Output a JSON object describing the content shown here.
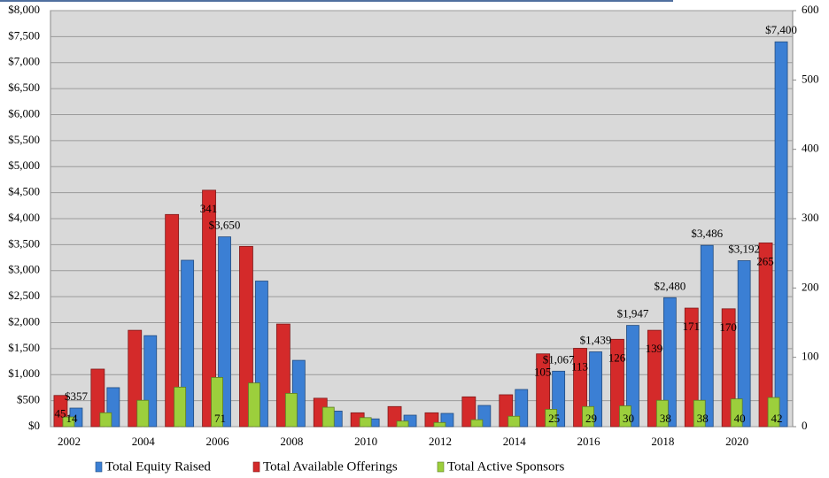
{
  "chart_data": {
    "type": "bar",
    "categories": [
      "2002",
      null,
      "2004",
      null,
      "2006",
      null,
      "2008",
      null,
      "2010",
      null,
      "2012",
      null,
      "2014",
      null,
      "2016",
      null,
      "2018",
      null,
      "2020",
      null
    ],
    "series": [
      {
        "name": "Total Equity Raised",
        "color": "#3b7fd4",
        "axis": "y",
        "values": [
          357,
          750,
          1750,
          3200,
          3650,
          2800,
          1275,
          300,
          150,
          221,
          255,
          408,
          715,
          1067,
          1439,
          1947,
          2480,
          3486,
          3192,
          7400
        ],
        "value_labels": [
          "$357",
          null,
          null,
          null,
          "$3,650",
          null,
          null,
          null,
          null,
          null,
          null,
          null,
          null,
          "$1,067",
          "$1,439",
          "$1,947",
          "$2,480",
          "$3,486",
          "$3,192",
          "$7,400"
        ]
      },
      {
        "name": "Total Available Offerings",
        "color": "#d42a2a",
        "axis": "y2",
        "values": [
          45,
          83,
          139,
          306,
          341,
          260,
          148,
          41,
          20,
          29,
          20,
          43,
          46,
          105,
          113,
          126,
          139,
          171,
          170,
          265
        ],
        "value_labels": [
          "45",
          null,
          null,
          null,
          "341",
          null,
          null,
          null,
          null,
          null,
          null,
          null,
          null,
          "105",
          "113",
          "126",
          "139",
          "171",
          "170",
          "265"
        ]
      },
      {
        "name": "Total Active Sponsors",
        "color": "#9ccf3c",
        "axis": "y2",
        "values": [
          14,
          20,
          38,
          57,
          71,
          63,
          48,
          28,
          13,
          8,
          6,
          10,
          15,
          25,
          29,
          30,
          38,
          38,
          40,
          42
        ],
        "value_labels": [
          "14",
          null,
          null,
          null,
          "71",
          null,
          null,
          null,
          null,
          null,
          null,
          null,
          null,
          "25",
          "29",
          "30",
          "38",
          "38",
          "40",
          "42"
        ]
      }
    ],
    "ylim": [
      0,
      8000
    ],
    "yticks": [
      {
        "value": 0,
        "label": "$0"
      },
      {
        "value": 500,
        "label": "$500"
      },
      {
        "value": 1000,
        "label": "$1,000"
      },
      {
        "value": 1500,
        "label": "$1,500"
      },
      {
        "value": 2000,
        "label": "$2,000"
      },
      {
        "value": 2500,
        "label": "$2,500"
      },
      {
        "value": 3000,
        "label": "$3,000"
      },
      {
        "value": 3500,
        "label": "$3,500"
      },
      {
        "value": 4000,
        "label": "$4,000"
      },
      {
        "value": 4500,
        "label": "$4,500"
      },
      {
        "value": 5000,
        "label": "$5,000"
      },
      {
        "value": 5500,
        "label": "$5,500"
      },
      {
        "value": 6000,
        "label": "$6,000"
      },
      {
        "value": 6500,
        "label": "$6,500"
      },
      {
        "value": 7000,
        "label": "$7,000"
      },
      {
        "value": 7500,
        "label": "$7,500"
      },
      {
        "value": 8000,
        "label": "$8,000"
      }
    ],
    "y2lim": [
      0,
      600
    ],
    "y2ticks": [
      0,
      100,
      200,
      300,
      400,
      500,
      600
    ],
    "grid": true,
    "legend": "bottom"
  }
}
